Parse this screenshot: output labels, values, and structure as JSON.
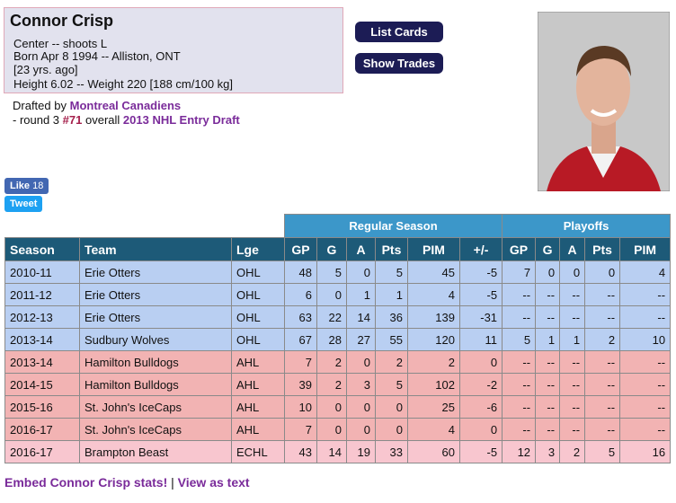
{
  "header": {
    "name": "Connor Crisp",
    "position": "Center -- shoots L",
    "born": "Born Apr 8 1994 -- Alliston, ONT",
    "age": "[23 yrs. ago]",
    "size": "Height 6.02 -- Weight 220 [188 cm/100 kg]"
  },
  "buttons": [
    "List Cards",
    "Show Trades"
  ],
  "draft": {
    "prefix": "Drafted by",
    "team": "Montreal Canadiens",
    "round": "- round 3",
    "pick": "#71",
    "overall": "overall",
    "event": "2013 NHL Entry Draft"
  },
  "social": {
    "like": "Like",
    "like_count": "18",
    "tweet": "Tweet"
  },
  "table": {
    "groups": [
      "Regular Season",
      "Playoffs"
    ],
    "columns": [
      "Season",
      "Team",
      "Lge",
      "GP",
      "G",
      "A",
      "Pts",
      "PIM",
      "+/-",
      "GP",
      "G",
      "A",
      "Pts",
      "PIM"
    ],
    "rows": [
      {
        "color": "#b9cff2",
        "cells": [
          "2010-11",
          "Erie Otters",
          "OHL",
          "48",
          "5",
          "0",
          "5",
          "45",
          "-5",
          "7",
          "0",
          "0",
          "0",
          "4"
        ]
      },
      {
        "color": "#b9cff2",
        "cells": [
          "2011-12",
          "Erie Otters",
          "OHL",
          "6",
          "0",
          "1",
          "1",
          "4",
          "-5",
          "--",
          "--",
          "--",
          "--",
          "--"
        ]
      },
      {
        "color": "#b9cff2",
        "cells": [
          "2012-13",
          "Erie Otters",
          "OHL",
          "63",
          "22",
          "14",
          "36",
          "139",
          "-31",
          "--",
          "--",
          "--",
          "--",
          "--"
        ]
      },
      {
        "color": "#b9cff2",
        "cells": [
          "2013-14",
          "Sudbury Wolves",
          "OHL",
          "67",
          "28",
          "27",
          "55",
          "120",
          "11",
          "5",
          "1",
          "1",
          "2",
          "10"
        ]
      },
      {
        "color": "#f2b3b3",
        "cells": [
          "2013-14",
          "Hamilton Bulldogs",
          "AHL",
          "7",
          "2",
          "0",
          "2",
          "2",
          "0",
          "--",
          "--",
          "--",
          "--",
          "--"
        ]
      },
      {
        "color": "#f2b3b3",
        "cells": [
          "2014-15",
          "Hamilton Bulldogs",
          "AHL",
          "39",
          "2",
          "3",
          "5",
          "102",
          "-2",
          "--",
          "--",
          "--",
          "--",
          "--"
        ]
      },
      {
        "color": "#f2b3b3",
        "cells": [
          "2015-16",
          "St. John's IceCaps",
          "AHL",
          "10",
          "0",
          "0",
          "0",
          "25",
          "-6",
          "--",
          "--",
          "--",
          "--",
          "--"
        ]
      },
      {
        "color": "#f2b3b3",
        "cells": [
          "2016-17",
          "St. John's IceCaps",
          "AHL",
          "7",
          "0",
          "0",
          "0",
          "4",
          "0",
          "--",
          "--",
          "--",
          "--",
          "--"
        ]
      },
      {
        "color": "#f8c6cf",
        "cells": [
          "2016-17",
          "Brampton Beast",
          "ECHL",
          "43",
          "14",
          "19",
          "33",
          "60",
          "-5",
          "12",
          "3",
          "2",
          "5",
          "16"
        ]
      }
    ]
  },
  "footer": {
    "embed": "Embed Connor Crisp stats!",
    "separator": "|",
    "text": "View as text"
  }
}
